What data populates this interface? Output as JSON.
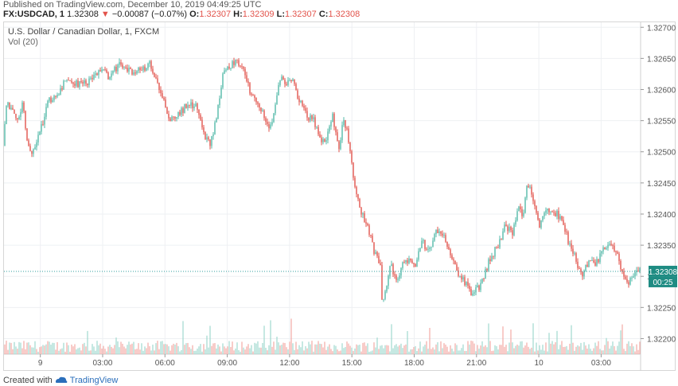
{
  "header": {
    "published": "Published on TradingView.com, December 10, 2019 04:49:25 UTC",
    "symbol": "FX:USDCAD, 1",
    "last": "1.32308",
    "change": "−0.00087 (−0.07%)",
    "o_label": "O:",
    "o_val": "1.32307",
    "h_label": "H:",
    "h_val": "1.32309",
    "l_label": "L:",
    "l_val": "1.32307",
    "c_label": "C:",
    "c_val": "1.32308"
  },
  "legend": {
    "title": "U.S. Dollar / Canadian Dollar, 1, FXCM",
    "volume": "Vol (20)"
  },
  "price_label": {
    "value": "1.32308",
    "countdown": "00:25"
  },
  "footer": {
    "created": "Created with",
    "brand": "TradingView"
  },
  "colors": {
    "up": "#53b9a8",
    "down": "#e2534b",
    "wick": "#555555",
    "price_line": "#2f9e9e",
    "grid": "#eef0f3"
  },
  "chart_data": {
    "type": "candlestick",
    "title": "U.S. Dollar / Canadian Dollar, 1, FXCM",
    "ylim": [
      1.32175,
      1.32708
    ],
    "y_ticks": [
      1.322,
      1.3225,
      1.323,
      1.3235,
      1.324,
      1.3245,
      1.325,
      1.3255,
      1.326,
      1.3265,
      1.327
    ],
    "y_tick_labels": [
      "1.32200",
      "1.32250",
      "1.32300",
      "1.32350",
      "1.32400",
      "1.32450",
      "1.32500",
      "1.32550",
      "1.32600",
      "1.32650",
      "1.32700"
    ],
    "x_ticks": [
      "9",
      "03:00",
      "06:00",
      "09:00",
      "12:00",
      "15:00",
      "18:00",
      "21:00",
      "10",
      "03:00"
    ],
    "x_tick_hours": [
      0,
      3,
      6,
      9,
      12,
      15,
      18,
      21,
      24,
      27
    ],
    "x_range_hours": [
      -1.75,
      28.9
    ],
    "last_price": 1.32308,
    "volume_indicator": "Vol (20)",
    "price_path": [
      [
        -1.75,
        1.3251
      ],
      [
        -1.6,
        1.3258
      ],
      [
        -1.4,
        1.3257
      ],
      [
        -1.1,
        1.3255
      ],
      [
        -0.8,
        1.3258
      ],
      [
        -0.6,
        1.3252
      ],
      [
        -0.35,
        1.3249
      ],
      [
        -0.15,
        1.3252
      ],
      [
        0.1,
        1.3254
      ],
      [
        0.4,
        1.3258
      ],
      [
        0.8,
        1.3259
      ],
      [
        1.2,
        1.3261
      ],
      [
        1.6,
        1.3261
      ],
      [
        2.2,
        1.3261
      ],
      [
        2.6,
        1.3262
      ],
      [
        3.0,
        1.3263
      ],
      [
        3.4,
        1.3262
      ],
      [
        3.8,
        1.3264
      ],
      [
        4.3,
        1.3263
      ],
      [
        4.8,
        1.3263
      ],
      [
        5.3,
        1.3264
      ],
      [
        5.6,
        1.3262
      ],
      [
        5.9,
        1.3259
      ],
      [
        6.3,
        1.3255
      ],
      [
        6.7,
        1.3256
      ],
      [
        7.2,
        1.3258
      ],
      [
        7.6,
        1.3257
      ],
      [
        7.9,
        1.3253
      ],
      [
        8.2,
        1.3251
      ],
      [
        8.5,
        1.3255
      ],
      [
        8.8,
        1.3262
      ],
      [
        9.2,
        1.3264
      ],
      [
        9.5,
        1.3265
      ],
      [
        9.8,
        1.3263
      ],
      [
        10.1,
        1.326
      ],
      [
        10.4,
        1.3258
      ],
      [
        10.8,
        1.3256
      ],
      [
        11.1,
        1.3254
      ],
      [
        11.4,
        1.3258
      ],
      [
        11.6,
        1.3262
      ],
      [
        11.9,
        1.3261
      ],
      [
        12.2,
        1.3262
      ],
      [
        12.4,
        1.3259
      ],
      [
        12.8,
        1.3256
      ],
      [
        13.2,
        1.3255
      ],
      [
        13.5,
        1.3252
      ],
      [
        13.8,
        1.3252
      ],
      [
        14.1,
        1.3256
      ],
      [
        14.4,
        1.325
      ],
      [
        14.6,
        1.3255
      ],
      [
        14.8,
        1.3254
      ],
      [
        15.0,
        1.3249
      ],
      [
        15.2,
        1.3244
      ],
      [
        15.5,
        1.324
      ],
      [
        15.8,
        1.3238
      ],
      [
        16.1,
        1.3234
      ],
      [
        16.4,
        1.3232
      ],
      [
        16.5,
        1.3226
      ],
      [
        16.7,
        1.3228
      ],
      [
        16.9,
        1.3232
      ],
      [
        17.2,
        1.3229
      ],
      [
        17.5,
        1.3232
      ],
      [
        17.8,
        1.3233
      ],
      [
        18.1,
        1.3232
      ],
      [
        18.4,
        1.3236
      ],
      [
        18.7,
        1.3234
      ],
      [
        19.1,
        1.3237
      ],
      [
        19.5,
        1.3236
      ],
      [
        19.9,
        1.3233
      ],
      [
        20.2,
        1.323
      ],
      [
        20.5,
        1.3229
      ],
      [
        20.8,
        1.3227
      ],
      [
        21.1,
        1.3228
      ],
      [
        21.4,
        1.323
      ],
      [
        21.7,
        1.3233
      ],
      [
        22.1,
        1.3235
      ],
      [
        22.4,
        1.3238
      ],
      [
        22.8,
        1.3237
      ],
      [
        23.0,
        1.3241
      ],
      [
        23.3,
        1.324
      ],
      [
        23.5,
        1.3245
      ],
      [
        23.8,
        1.3242
      ],
      [
        24.1,
        1.3238
      ],
      [
        24.3,
        1.324
      ],
      [
        24.6,
        1.3241
      ],
      [
        24.9,
        1.324
      ],
      [
        25.2,
        1.3239
      ],
      [
        25.5,
        1.3235
      ],
      [
        25.8,
        1.3233
      ],
      [
        26.1,
        1.323
      ],
      [
        26.4,
        1.3232
      ],
      [
        26.8,
        1.3232
      ],
      [
        27.1,
        1.3234
      ],
      [
        27.5,
        1.3235
      ],
      [
        27.8,
        1.3234
      ],
      [
        28.1,
        1.323
      ],
      [
        28.4,
        1.3229
      ],
      [
        28.7,
        1.3231
      ],
      [
        28.9,
        1.32308
      ]
    ]
  }
}
